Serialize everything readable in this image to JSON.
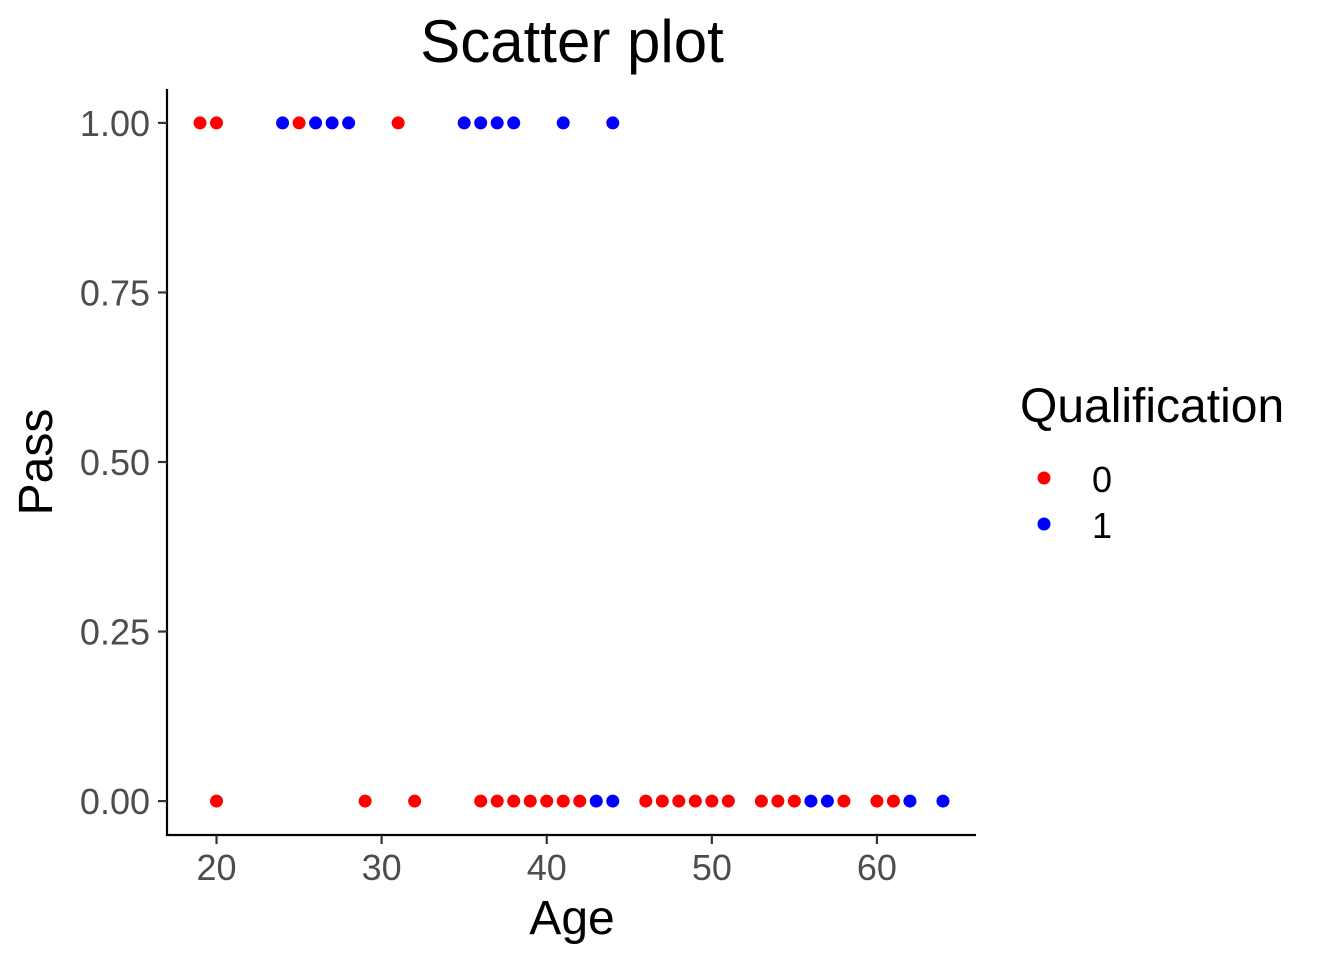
{
  "chart_data": {
    "type": "scatter",
    "title": "Scatter plot",
    "xlabel": "Age",
    "ylabel": "Pass",
    "xlim": [
      17,
      66
    ],
    "ylim": [
      -0.05,
      1.05
    ],
    "x_ticks": [
      20,
      30,
      40,
      50,
      60
    ],
    "x_tick_labels": [
      "20",
      "30",
      "40",
      "50",
      "60"
    ],
    "y_ticks": [
      0,
      0.25,
      0.5,
      0.75,
      1
    ],
    "y_tick_labels": [
      "0.00",
      "0.25",
      "0.50",
      "0.75",
      "1.00"
    ],
    "grid": false,
    "legend": {
      "title": "Qualification",
      "position": "right",
      "entries": [
        {
          "label": "0",
          "color": "#ff0000"
        },
        {
          "label": "1",
          "color": "#0000ff"
        }
      ]
    },
    "series": [
      {
        "name": "0",
        "color": "#ff0000",
        "points": [
          [
            19,
            1
          ],
          [
            20,
            1
          ],
          [
            25,
            1
          ],
          [
            31,
            1
          ],
          [
            20,
            0
          ],
          [
            29,
            0
          ],
          [
            32,
            0
          ],
          [
            36,
            0
          ],
          [
            37,
            0
          ],
          [
            38,
            0
          ],
          [
            39,
            0
          ],
          [
            40,
            0
          ],
          [
            41,
            0
          ],
          [
            42,
            0
          ],
          [
            46,
            0
          ],
          [
            47,
            0
          ],
          [
            48,
            0
          ],
          [
            49,
            0
          ],
          [
            50,
            0
          ],
          [
            51,
            0
          ],
          [
            53,
            0
          ],
          [
            54,
            0
          ],
          [
            55,
            0
          ],
          [
            58,
            0
          ],
          [
            60,
            0
          ],
          [
            61,
            0
          ]
        ]
      },
      {
        "name": "1",
        "color": "#0000ff",
        "points": [
          [
            24,
            1
          ],
          [
            26,
            1
          ],
          [
            27,
            1
          ],
          [
            28,
            1
          ],
          [
            35,
            1
          ],
          [
            36,
            1
          ],
          [
            37,
            1
          ],
          [
            38,
            1
          ],
          [
            41,
            1
          ],
          [
            44,
            1
          ],
          [
            43,
            0
          ],
          [
            44,
            0
          ],
          [
            56,
            0
          ],
          [
            57,
            0
          ],
          [
            62,
            0
          ],
          [
            64,
            0
          ]
        ]
      }
    ]
  }
}
